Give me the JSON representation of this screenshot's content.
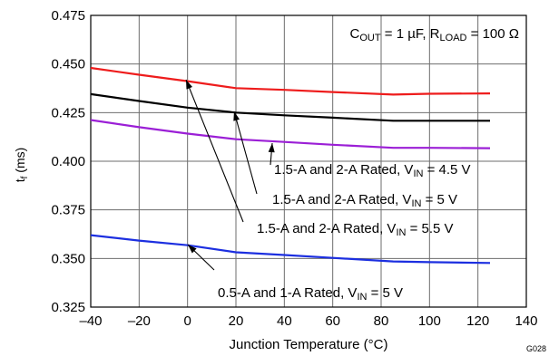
{
  "chart_data": {
    "type": "line",
    "xlabel": "Junction Temperature (°C)",
    "ylabel": {
      "main": "t",
      "sub": "f",
      "rest": " (ms)"
    },
    "xlim": [
      -40,
      140
    ],
    "ylim": [
      0.325,
      0.475
    ],
    "xticks": [
      -40,
      -20,
      0,
      20,
      40,
      60,
      80,
      100,
      120,
      140
    ],
    "xtick_labels": [
      "–40",
      "–20",
      "0",
      "20",
      "40",
      "60",
      "80",
      "100",
      "120",
      "140"
    ],
    "yticks": [
      0.325,
      0.35,
      0.375,
      0.4,
      0.425,
      0.45,
      0.475
    ],
    "ytick_labels": [
      "0.325",
      "0.350",
      "0.375",
      "0.400",
      "0.425",
      "0.450",
      "0.475"
    ],
    "grid": true,
    "figure_code": "G028",
    "conditions": {
      "parts": [
        {
          "t": "C",
          "sub": false
        },
        {
          "t": "OUT",
          "sub": true
        },
        {
          "t": " = 1 µF, R",
          "sub": false
        },
        {
          "t": "LOAD",
          "sub": true
        },
        {
          "t": " = 100 Ω",
          "sub": false
        }
      ]
    },
    "series": [
      {
        "color": "#ee1c1c",
        "x": [
          -40,
          -20,
          0,
          20,
          40,
          60,
          85,
          100,
          125
        ],
        "y": [
          0.448,
          0.4445,
          0.4412,
          0.4376,
          0.4367,
          0.4356,
          0.4343,
          0.4347,
          0.4349
        ],
        "label_parts": [
          {
            "t": "1.5-A and 2-A Rated, V",
            "sub": false
          },
          {
            "t": "IN",
            "sub": true
          },
          {
            "t": " = 5.5 V",
            "sub": false
          }
        ]
      },
      {
        "color": "#000000",
        "x": [
          -40,
          -20,
          0,
          20,
          40,
          60,
          85,
          100,
          125
        ],
        "y": [
          0.4345,
          0.431,
          0.4276,
          0.425,
          0.4236,
          0.4224,
          0.4208,
          0.4208,
          0.4208
        ],
        "label_parts": [
          {
            "t": "1.5-A and 2-A Rated, V",
            "sub": false
          },
          {
            "t": "IN",
            "sub": true
          },
          {
            "t": " = 5 V",
            "sub": false
          }
        ]
      },
      {
        "color": "#9b1fd6",
        "x": [
          -40,
          -20,
          0,
          20,
          40,
          60,
          85,
          100,
          125
        ],
        "y": [
          0.4212,
          0.4175,
          0.4142,
          0.4113,
          0.4099,
          0.4085,
          0.4069,
          0.4069,
          0.4067
        ],
        "label_parts": [
          {
            "t": "1.5-A and 2-A Rated, V",
            "sub": false
          },
          {
            "t": "IN",
            "sub": true
          },
          {
            "t": " = 4.5 V",
            "sub": false
          }
        ]
      },
      {
        "color": "#1c2fe0",
        "x": [
          -40,
          -20,
          0,
          20,
          40,
          60,
          85,
          100,
          125
        ],
        "y": [
          0.362,
          0.3592,
          0.3568,
          0.3532,
          0.3518,
          0.3503,
          0.3485,
          0.3481,
          0.3477
        ],
        "label_parts": [
          {
            "t": "0.5-A and 1-A Rated, V",
            "sub": false
          },
          {
            "t": "IN",
            "sub": true
          },
          {
            "t": " = 5 V",
            "sub": false
          }
        ]
      }
    ]
  }
}
